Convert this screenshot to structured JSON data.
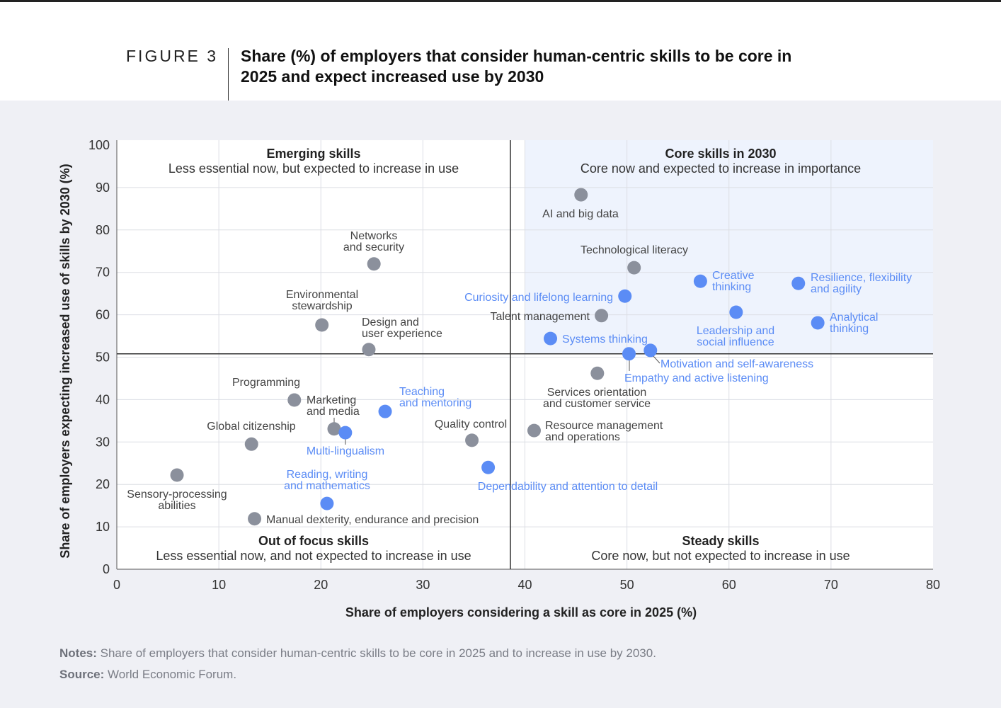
{
  "figure_label": "FIGURE 3",
  "title": "Share (%) of employers that consider human-centric skills to be core in 2025 and expect increased use by 2030",
  "notes_label": "Notes:",
  "notes_text": "Share of employers that consider human-centric skills to be core in 2025 and to increase in use by 2030.",
  "source_label": "Source:",
  "source_text": "World Economic Forum.",
  "chart_data": {
    "type": "scatter",
    "xlabel": "Share of employers considering a skill as core in 2025 (%)",
    "ylabel": "Share of employers expecting increased use of skills by 2030 (%)",
    "xlim": [
      0,
      80
    ],
    "ylim": [
      0,
      100
    ],
    "xticks": [
      "0",
      "10",
      "20",
      "30",
      "40",
      "50",
      "60",
      "70",
      "80"
    ],
    "yticks": [
      "0",
      "10",
      "20",
      "30",
      "40",
      "50",
      "60",
      "70",
      "80",
      "90",
      "100"
    ],
    "grid": true,
    "divider": {
      "x": 38.6,
      "y": 50.8
    },
    "colors": {
      "highlight": "#5b8cf5",
      "other": "#8b909c",
      "core_quadrant_fill": "#eef3fd"
    },
    "quadrants": [
      {
        "title": "Emerging skills",
        "subtitle": "Less essential now, but expected to increase in use"
      },
      {
        "title": "Core skills in 2030",
        "subtitle": "Core now and expected to increase in importance"
      },
      {
        "title": "Out of focus skills",
        "subtitle": "Less essential now, and not expected to increase in use"
      },
      {
        "title": "Steady skills",
        "subtitle": "Core now, but not expected to increase in use"
      }
    ],
    "points": [
      {
        "label": "AI and big data",
        "x": 45.5,
        "y": 88.3,
        "highlight": false
      },
      {
        "label": "Networks\nand security",
        "x": 25.2,
        "y": 72.0,
        "highlight": false
      },
      {
        "label": "Environmental\nstewardship",
        "x": 20.1,
        "y": 57.6,
        "highlight": false
      },
      {
        "label": "Design and\nuser experience",
        "x": 24.7,
        "y": 51.8,
        "highlight": false
      },
      {
        "label": "Programming",
        "x": 17.4,
        "y": 39.9,
        "highlight": false
      },
      {
        "label": "Marketing\nand media",
        "x": 21.3,
        "y": 33.1,
        "highlight": false
      },
      {
        "label": "Multi-lingualism",
        "x": 22.4,
        "y": 32.2,
        "highlight": true
      },
      {
        "label": "Teaching\nand mentoring",
        "x": 26.3,
        "y": 37.2,
        "highlight": true
      },
      {
        "label": "Global citizenship",
        "x": 13.2,
        "y": 29.5,
        "highlight": false
      },
      {
        "label": "Quality control",
        "x": 34.8,
        "y": 30.4,
        "highlight": false
      },
      {
        "label": "Sensory-processing\nabilities",
        "x": 5.9,
        "y": 22.2,
        "highlight": false
      },
      {
        "label": "Reading, writing\nand mathematics",
        "x": 20.6,
        "y": 15.5,
        "highlight": true
      },
      {
        "label": "Manual dexterity, endurance and precision",
        "x": 13.5,
        "y": 11.9,
        "highlight": false
      },
      {
        "label": "Dependability and attention to detail",
        "x": 36.4,
        "y": 24.0,
        "highlight": true
      },
      {
        "label": "Technological literacy",
        "x": 50.7,
        "y": 71.1,
        "highlight": false
      },
      {
        "label": "Curiosity and lifelong learning",
        "x": 49.8,
        "y": 64.4,
        "highlight": true
      },
      {
        "label": "Talent management",
        "x": 47.5,
        "y": 59.8,
        "highlight": false
      },
      {
        "label": "Systems thinking",
        "x": 42.5,
        "y": 54.4,
        "highlight": true
      },
      {
        "label": "Empathy and active listening",
        "x": 50.2,
        "y": 50.8,
        "highlight": true
      },
      {
        "label": "Motivation and self-awareness",
        "x": 52.3,
        "y": 51.6,
        "highlight": true
      },
      {
        "label": "Services orientation\nand customer service",
        "x": 47.1,
        "y": 46.2,
        "highlight": false
      },
      {
        "label": "Resource management\nand operations",
        "x": 40.9,
        "y": 32.7,
        "highlight": false
      },
      {
        "label": "Creative\nthinking",
        "x": 57.2,
        "y": 67.9,
        "highlight": true
      },
      {
        "label": "Resilience, flexibility\nand agility",
        "x": 66.8,
        "y": 67.4,
        "highlight": true
      },
      {
        "label": "Leadership and\nsocial influence",
        "x": 60.7,
        "y": 60.6,
        "highlight": true
      },
      {
        "label": "Analytical\nthinking",
        "x": 68.7,
        "y": 58.1,
        "highlight": true
      }
    ]
  }
}
